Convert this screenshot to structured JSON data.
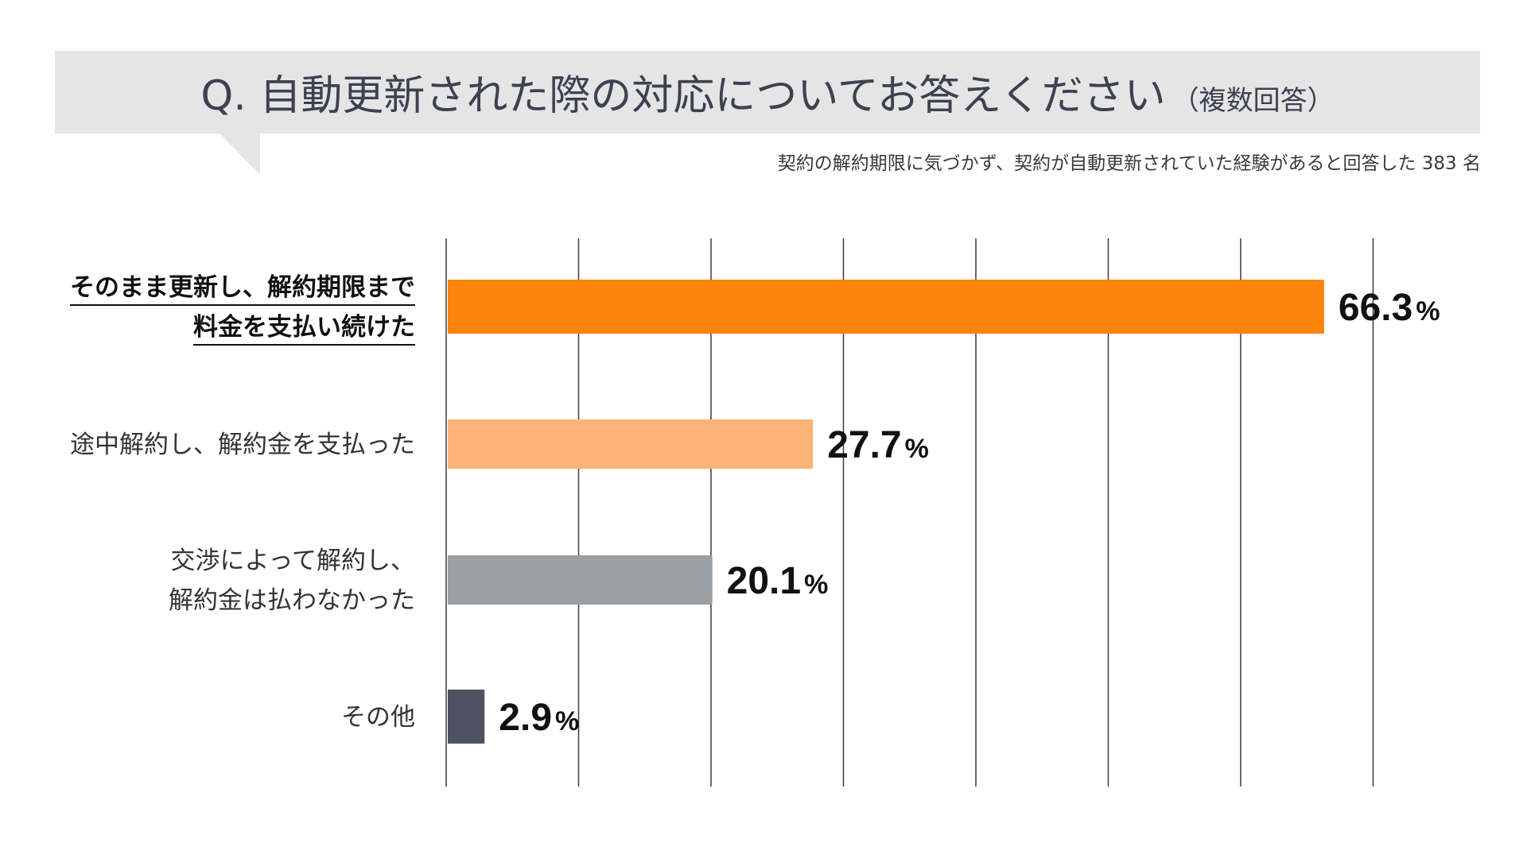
{
  "chart_data": {
    "type": "bar",
    "orientation": "horizontal",
    "title": "Q. 自動更新された際の対応についてお答えください",
    "title_suffix": "（複数回答）",
    "subtitle": "契約の解約期限に気づかず、契約が自動更新されていた経験があると回答した 383 名",
    "categories": [
      [
        "そのまま更新し、解約期限まで",
        "料金を支払い続けた"
      ],
      [
        "途中解約し、解約金を支払った"
      ],
      [
        "交渉によって解約し、",
        "解約金は払わなかった"
      ],
      [
        "その他"
      ]
    ],
    "values": [
      66.3,
      27.7,
      20.1,
      2.9
    ],
    "value_labels": [
      "66.3",
      "27.7",
      "20.1",
      "2.9"
    ],
    "unit": "%",
    "xlim": [
      0,
      70
    ],
    "grid_step": 10,
    "grid": true,
    "highlight_index": 0,
    "colors": [
      "#fc830e",
      "#fdb378",
      "#9a9ea5",
      "#4f5262"
    ],
    "header_bg": "#e5e5e6",
    "grid_color": "#3a3a3a"
  }
}
